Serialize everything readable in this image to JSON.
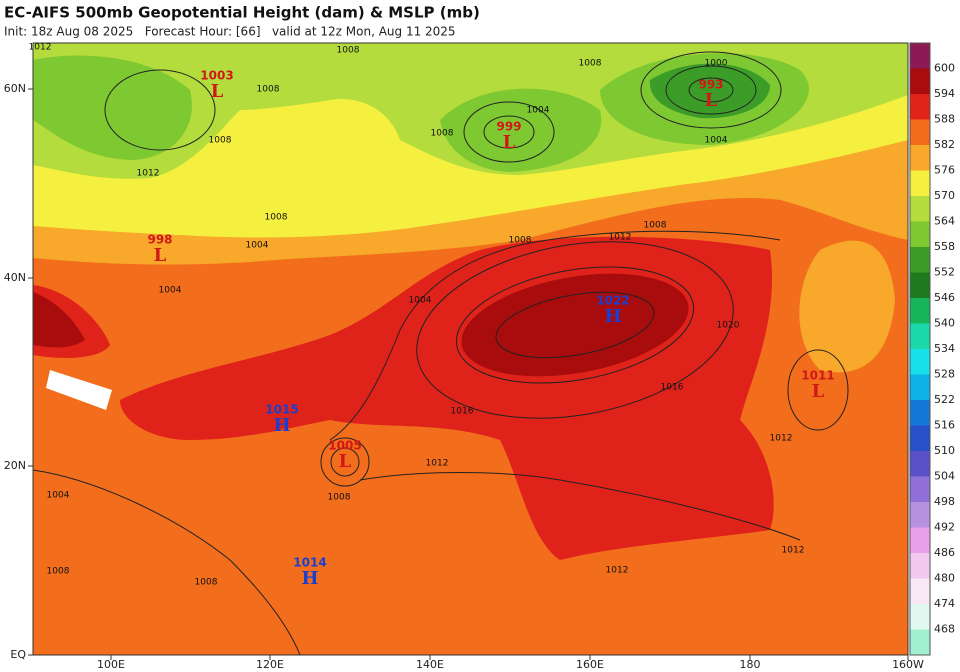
{
  "header": {
    "title": "EC-AIFS 500mb Geopotential Height (dam) & MSLP (mb)",
    "subtitle": "Init: 18z Aug 08 2025   Forecast Hour: [66]   valid at 12z Mon, Aug 11 2025"
  },
  "map": {
    "lon_labels": [
      "100E",
      "120E",
      "140E",
      "160E",
      "180",
      "160W"
    ],
    "lat_labels": [
      "60N",
      "40N",
      "20N",
      "EQ"
    ],
    "pressure_centers": [
      {
        "type": "L",
        "value": 1003
      },
      {
        "type": "L",
        "value": 999
      },
      {
        "type": "L",
        "value": 993
      },
      {
        "type": "L",
        "value": 998
      },
      {
        "type": "H",
        "value": 1022
      },
      {
        "type": "H",
        "value": 1015
      },
      {
        "type": "L",
        "value": 1005
      },
      {
        "type": "H",
        "value": 1014
      },
      {
        "type": "L",
        "value": 1011
      }
    ],
    "contour_labels": [
      1012,
      1008,
      1008,
      1012,
      1008,
      1008,
      1004,
      1004,
      1008,
      1012,
      1008,
      1004,
      1000,
      1004,
      1008,
      1020,
      1016,
      1016,
      1012,
      1012,
      1012,
      1012,
      1008,
      1008,
      1004,
      1008,
      1008,
      1004
    ]
  },
  "colorbar": {
    "labels": [
      600,
      594,
      588,
      582,
      576,
      570,
      564,
      558,
      552,
      546,
      540,
      534,
      528,
      522,
      516,
      510,
      504,
      498,
      492,
      486,
      480,
      474,
      468
    ],
    "colors": [
      "#8b1a55",
      "#a80c0c",
      "#e0231a",
      "#f26d1c",
      "#f8a82a",
      "#f5f040",
      "#b4dc3c",
      "#7ec832",
      "#3c9c28",
      "#1e7a1e",
      "#18b45a",
      "#1cd8a8",
      "#18e0e8",
      "#10b0e8",
      "#1478d8",
      "#2850c8",
      "#5a50c8",
      "#9070d8",
      "#b890e0",
      "#e8a0e8",
      "#f0c8f0",
      "#f8e8f4",
      "#e0f8f0",
      "#a0f0d0"
    ]
  }
}
